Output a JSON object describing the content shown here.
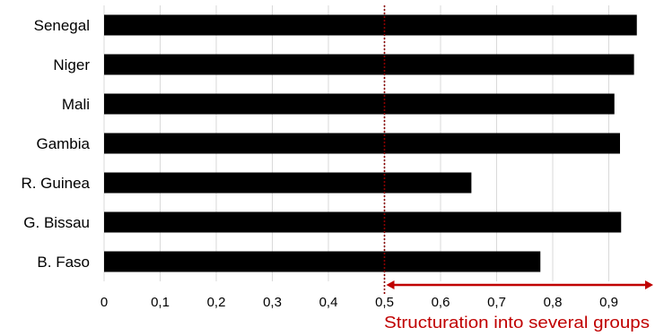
{
  "chart_data": {
    "type": "bar",
    "orientation": "horizontal",
    "categories": [
      "Senegal",
      "Niger",
      "Mali",
      "Gambia",
      "R. Guinea",
      "G. Bissau",
      "B. Faso"
    ],
    "values": [
      0.95,
      0.945,
      0.91,
      0.92,
      0.655,
      0.922,
      0.778
    ],
    "x_ticks": [
      "0",
      "0,1",
      "0,2",
      "0,3",
      "0,4",
      "0,5",
      "0,6",
      "0,7",
      "0,8",
      "0,9"
    ],
    "xlim": [
      0,
      0.98
    ],
    "grid": "vertical",
    "threshold": 0.5,
    "annotation": "Structuration  into several  groups",
    "colors": {
      "bar": "#000000",
      "grid": "#d9d9d9",
      "threshold_line": "#8b0000",
      "annotation": "#c00000"
    }
  }
}
